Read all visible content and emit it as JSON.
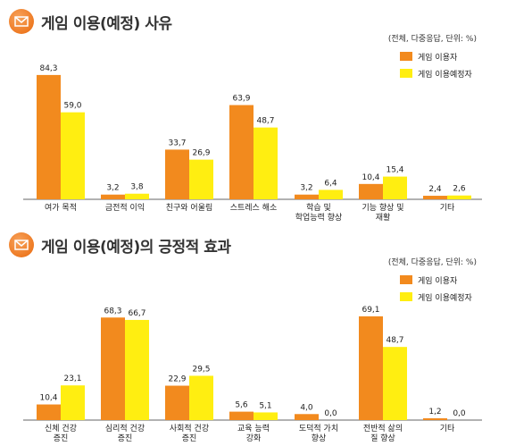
{
  "colors": {
    "orange": "#f28a1e",
    "yellow": "#ffee11",
    "axis": "#666666",
    "icon": "#ee7a23"
  },
  "chart_data": [
    {
      "type": "bar",
      "title": "게임 이용(예정) 사유",
      "unit_note": "(전체, 다중응답, 단위: %)",
      "ylim": [
        0,
        100
      ],
      "categories": [
        [
          "여가 목적"
        ],
        [
          "금전적 이익"
        ],
        [
          "친구와 어울림"
        ],
        [
          "스트레스 해소"
        ],
        [
          "학습 및",
          "학업능력 향상"
        ],
        [
          "기능 향상 및",
          "재활"
        ],
        [
          "기타"
        ]
      ],
      "series": [
        {
          "name": "게임 이용자",
          "values": [
            84.3,
            3.2,
            33.7,
            63.9,
            3.2,
            10.4,
            2.4
          ],
          "labels": [
            "84,3",
            "3,2",
            "33,7",
            "63,9",
            "3,2",
            "10,4",
            "2,4"
          ]
        },
        {
          "name": "게임 이용예정자",
          "values": [
            59.0,
            3.8,
            26.9,
            48.7,
            6.4,
            15.4,
            2.6
          ],
          "labels": [
            "59,0",
            "3,8",
            "26,9",
            "48,7",
            "6,4",
            "15,4",
            "2,6"
          ]
        }
      ],
      "legend": "top-right",
      "grid": false
    },
    {
      "type": "bar",
      "title": "게임 이용(예정)의 긍정적 효과",
      "unit_note": "(전체, 다중응답, 단위: %)",
      "ylim": [
        0,
        100
      ],
      "categories": [
        [
          "신체 건강",
          "증진"
        ],
        [
          "심리적 건강",
          "증진"
        ],
        [
          "사회적 건강",
          "증진"
        ],
        [
          "교육 능력",
          "강화"
        ],
        [
          "도덕적 가치",
          "향상"
        ],
        [
          "전반적 삶의",
          "질 향상"
        ],
        [
          "기타"
        ]
      ],
      "series": [
        {
          "name": "게임 이용자",
          "values": [
            10.4,
            68.3,
            22.9,
            5.6,
            4.0,
            69.1,
            1.2
          ],
          "labels": [
            "10,4",
            "68,3",
            "22,9",
            "5,6",
            "4,0",
            "69,1",
            "1,2"
          ]
        },
        {
          "name": "게임 이용예정자",
          "values": [
            23.1,
            66.7,
            29.5,
            5.1,
            0.0,
            48.7,
            0.0
          ],
          "labels": [
            "23,1",
            "66,7",
            "29,5",
            "5,1",
            "0,0",
            "48,7",
            "0,0"
          ]
        }
      ],
      "legend": "top-right",
      "grid": false
    }
  ]
}
